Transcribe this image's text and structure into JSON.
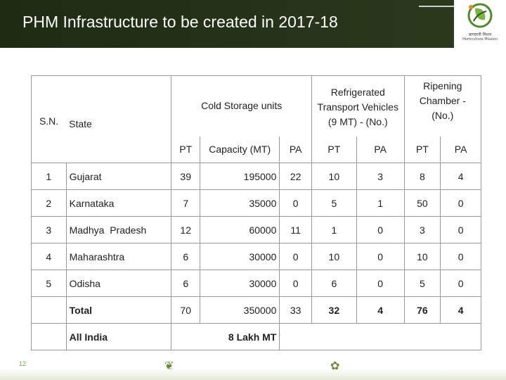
{
  "header": {
    "title": "PHM Infrastructure to be created in 2017-18",
    "logo_caption_line1": "बागवानी मिशन",
    "logo_caption_line2": "Horticulture Mission"
  },
  "table": {
    "col_sn": "S.N.",
    "col_state": "State",
    "group_cold_storage": "Cold Storage units",
    "group_reefer": "Refrigerated Transport Vehicles (9 MT) - (No.)",
    "group_ripening": "Ripening Chamber - (No.)",
    "sub_pt": "PT",
    "sub_capacity": "Capacity (MT)",
    "sub_pa": "PA",
    "rows": [
      {
        "sn": "1",
        "state": "Gujarat",
        "cs_pt": "39",
        "cs_cap": "195000",
        "cs_pa": "22",
        "rt_pt": "10",
        "rt_pa": "3",
        "rc_pt": "8",
        "rc_pa": "4"
      },
      {
        "sn": "2",
        "state": "Karnataka",
        "cs_pt": "7",
        "cs_cap": "35000",
        "cs_pa": "0",
        "rt_pt": "5",
        "rt_pa": "1",
        "rc_pt": "50",
        "rc_pa": "0"
      },
      {
        "sn": "3",
        "state": "Madhya  Pradesh",
        "cs_pt": "12",
        "cs_cap": "60000",
        "cs_pa": "11",
        "rt_pt": "1",
        "rt_pa": "0",
        "rc_pt": "3",
        "rc_pa": "0"
      },
      {
        "sn": "4",
        "state": "Maharashtra",
        "cs_pt": "6",
        "cs_cap": "30000",
        "cs_pa": "0",
        "rt_pt": "10",
        "rt_pa": "0",
        "rc_pt": "10",
        "rc_pa": "0"
      },
      {
        "sn": "5",
        "state": "Odisha",
        "cs_pt": "6",
        "cs_cap": "30000",
        "cs_pa": "0",
        "rt_pt": "6",
        "rt_pa": "0",
        "rc_pt": "5",
        "rc_pa": "0"
      }
    ],
    "total": {
      "label": "Total",
      "cs_pt": "70",
      "cs_cap": "350000",
      "cs_pa": "33",
      "rt_pt": "32",
      "rt_pa": "4",
      "rc_pt": "76",
      "rc_pa": "4"
    },
    "all_india": {
      "label": "All India",
      "value": "8 Lakh MT"
    }
  },
  "footer": {
    "page_number": "12"
  },
  "colors": {
    "title_bar": "#2a3519",
    "title_text": "#ffffff",
    "logo_green": "#4f8a2a",
    "border": "#9a9a9a"
  }
}
